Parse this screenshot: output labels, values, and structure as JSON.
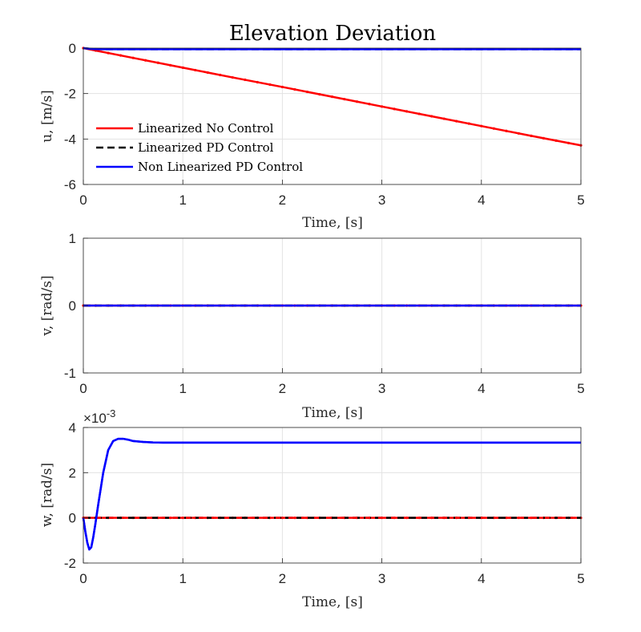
{
  "chart_data": [
    {
      "type": "line",
      "title": "Elevation Deviation",
      "xlabel": "Time, [s]",
      "ylabel": "u, [m/s]",
      "xlim": [
        0,
        5
      ],
      "ylim": [
        -6,
        0
      ],
      "xticks": [
        "0",
        "1",
        "2",
        "3",
        "4",
        "5"
      ],
      "yticks": [
        "-6",
        "-4",
        "-2",
        "0"
      ],
      "grid": true,
      "legend": {
        "placement": "lower-left",
        "entries": [
          "Linearized No Control",
          "Linearized PD Control",
          "Non Linearized PD Control"
        ]
      },
      "series": [
        {
          "name": "Linearized No Control",
          "color": "#ff0000",
          "style": "solid-dots",
          "x": [
            0,
            0.5,
            1,
            1.5,
            2,
            2.5,
            3,
            3.5,
            4,
            4.5,
            5
          ],
          "y": [
            0,
            -0.43,
            -0.86,
            -1.29,
            -1.71,
            -2.14,
            -2.57,
            -3.0,
            -3.43,
            -3.86,
            -4.28
          ]
        },
        {
          "name": "Linearized PD Control",
          "color": "#000000",
          "style": "dashed",
          "x": [
            0,
            0.05,
            0.1,
            0.2,
            0.5,
            1,
            2,
            3,
            4,
            5
          ],
          "y": [
            0,
            -0.02,
            -0.04,
            -0.05,
            -0.05,
            -0.05,
            -0.05,
            -0.05,
            -0.05,
            -0.05
          ]
        },
        {
          "name": "Non Linearized PD Control",
          "color": "#0000ff",
          "style": "solid",
          "x": [
            0,
            0.05,
            0.1,
            0.2,
            0.5,
            1,
            2,
            3,
            4,
            5
          ],
          "y": [
            0,
            -0.02,
            -0.04,
            -0.05,
            -0.05,
            -0.05,
            -0.05,
            -0.05,
            -0.05,
            -0.05
          ]
        }
      ]
    },
    {
      "type": "line",
      "xlabel": "Time, [s]",
      "ylabel": "v, [rad/s]",
      "xlim": [
        0,
        5
      ],
      "ylim": [
        -1,
        1
      ],
      "xticks": [
        "0",
        "1",
        "2",
        "3",
        "4",
        "5"
      ],
      "yticks": [
        "-1",
        "0",
        "1"
      ],
      "grid": true,
      "series": [
        {
          "name": "Linearized No Control",
          "color": "#ff0000",
          "style": "solid-dots",
          "x": [
            0,
            5
          ],
          "y": [
            0,
            0
          ]
        },
        {
          "name": "Linearized PD Control",
          "color": "#000000",
          "style": "dashed",
          "x": [
            0,
            5
          ],
          "y": [
            0,
            0
          ]
        },
        {
          "name": "Non Linearized PD Control",
          "color": "#0000ff",
          "style": "solid",
          "x": [
            0,
            5
          ],
          "y": [
            0,
            0
          ]
        }
      ]
    },
    {
      "type": "line",
      "xlabel": "Time, [s]",
      "ylabel": "w, [rad/s]",
      "exponent_label": "×10",
      "exponent_power": "-3",
      "xlim": [
        0,
        5
      ],
      "ylim": [
        -2,
        4
      ],
      "xticks": [
        "0",
        "1",
        "2",
        "3",
        "4",
        "5"
      ],
      "yticks": [
        "-2",
        "0",
        "2",
        "4"
      ],
      "grid": true,
      "series": [
        {
          "name": "Linearized No Control",
          "color": "#ff0000",
          "style": "dash-dots",
          "x": [
            0,
            5
          ],
          "y": [
            0,
            0
          ]
        },
        {
          "name": "Linearized PD Control",
          "color": "#000000",
          "style": "dashed",
          "x": [
            0,
            5
          ],
          "y": [
            0,
            0
          ]
        },
        {
          "name": "Non Linearized PD Control",
          "color": "#0000ff",
          "style": "solid",
          "x": [
            0,
            0.02,
            0.04,
            0.06,
            0.08,
            0.1,
            0.12,
            0.15,
            0.2,
            0.25,
            0.3,
            0.35,
            0.4,
            0.45,
            0.5,
            0.6,
            0.7,
            0.8,
            1.0,
            1.5,
            2,
            3,
            4,
            5
          ],
          "y": [
            0,
            -0.6,
            -1.1,
            -1.4,
            -1.3,
            -0.85,
            -0.3,
            0.6,
            2.0,
            3.0,
            3.4,
            3.5,
            3.5,
            3.46,
            3.4,
            3.36,
            3.34,
            3.33,
            3.33,
            3.33,
            3.33,
            3.33,
            3.33,
            3.33
          ]
        }
      ]
    }
  ]
}
